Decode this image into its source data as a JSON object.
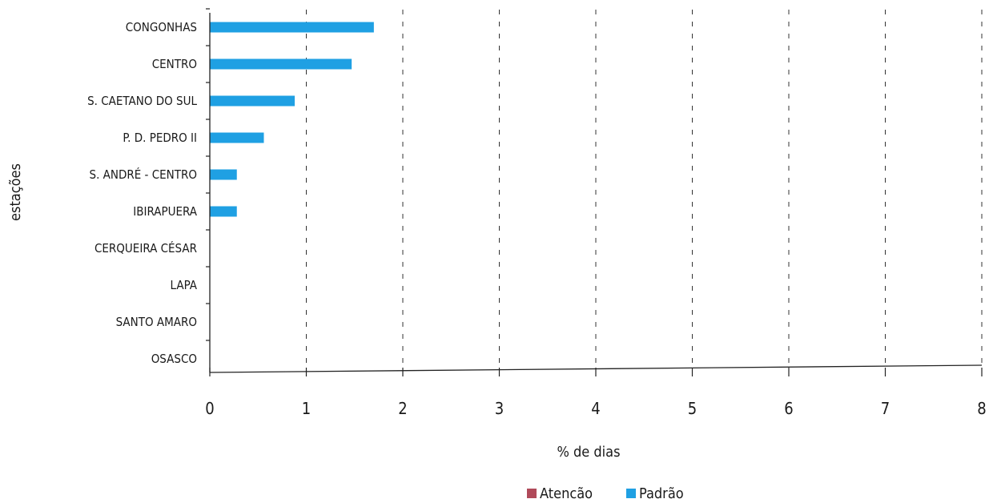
{
  "chart_data": {
    "type": "bar",
    "orientation": "horizontal",
    "title": "",
    "xlabel": "% de dias",
    "ylabel": "estações",
    "xlim": [
      0,
      8
    ],
    "x_ticks": [
      "0",
      "1",
      "2",
      "3",
      "4",
      "5",
      "6",
      "7",
      "8"
    ],
    "grid": "vertical-dashed",
    "categories": [
      "CONGONHAS",
      "CENTRO",
      "S. CAETANO DO SUL",
      "P. D. PEDRO II",
      "S. ANDRÉ - CENTRO",
      "IBIRAPUERA",
      "CERQUEIRA CÉSAR",
      "LAPA",
      "SANTO AMARO",
      "OSASCO"
    ],
    "series": [
      {
        "name": "Atencão",
        "color": "#b04a5a",
        "values": [
          0,
          0,
          0,
          0,
          0,
          0,
          0,
          0,
          0,
          0
        ]
      },
      {
        "name": "Padrão",
        "color": "#1fa0e3",
        "values": [
          1.7,
          1.47,
          0.88,
          0.56,
          0.28,
          0.28,
          0,
          0,
          0,
          0
        ]
      }
    ],
    "legend": {
      "position": "bottom-right"
    }
  }
}
